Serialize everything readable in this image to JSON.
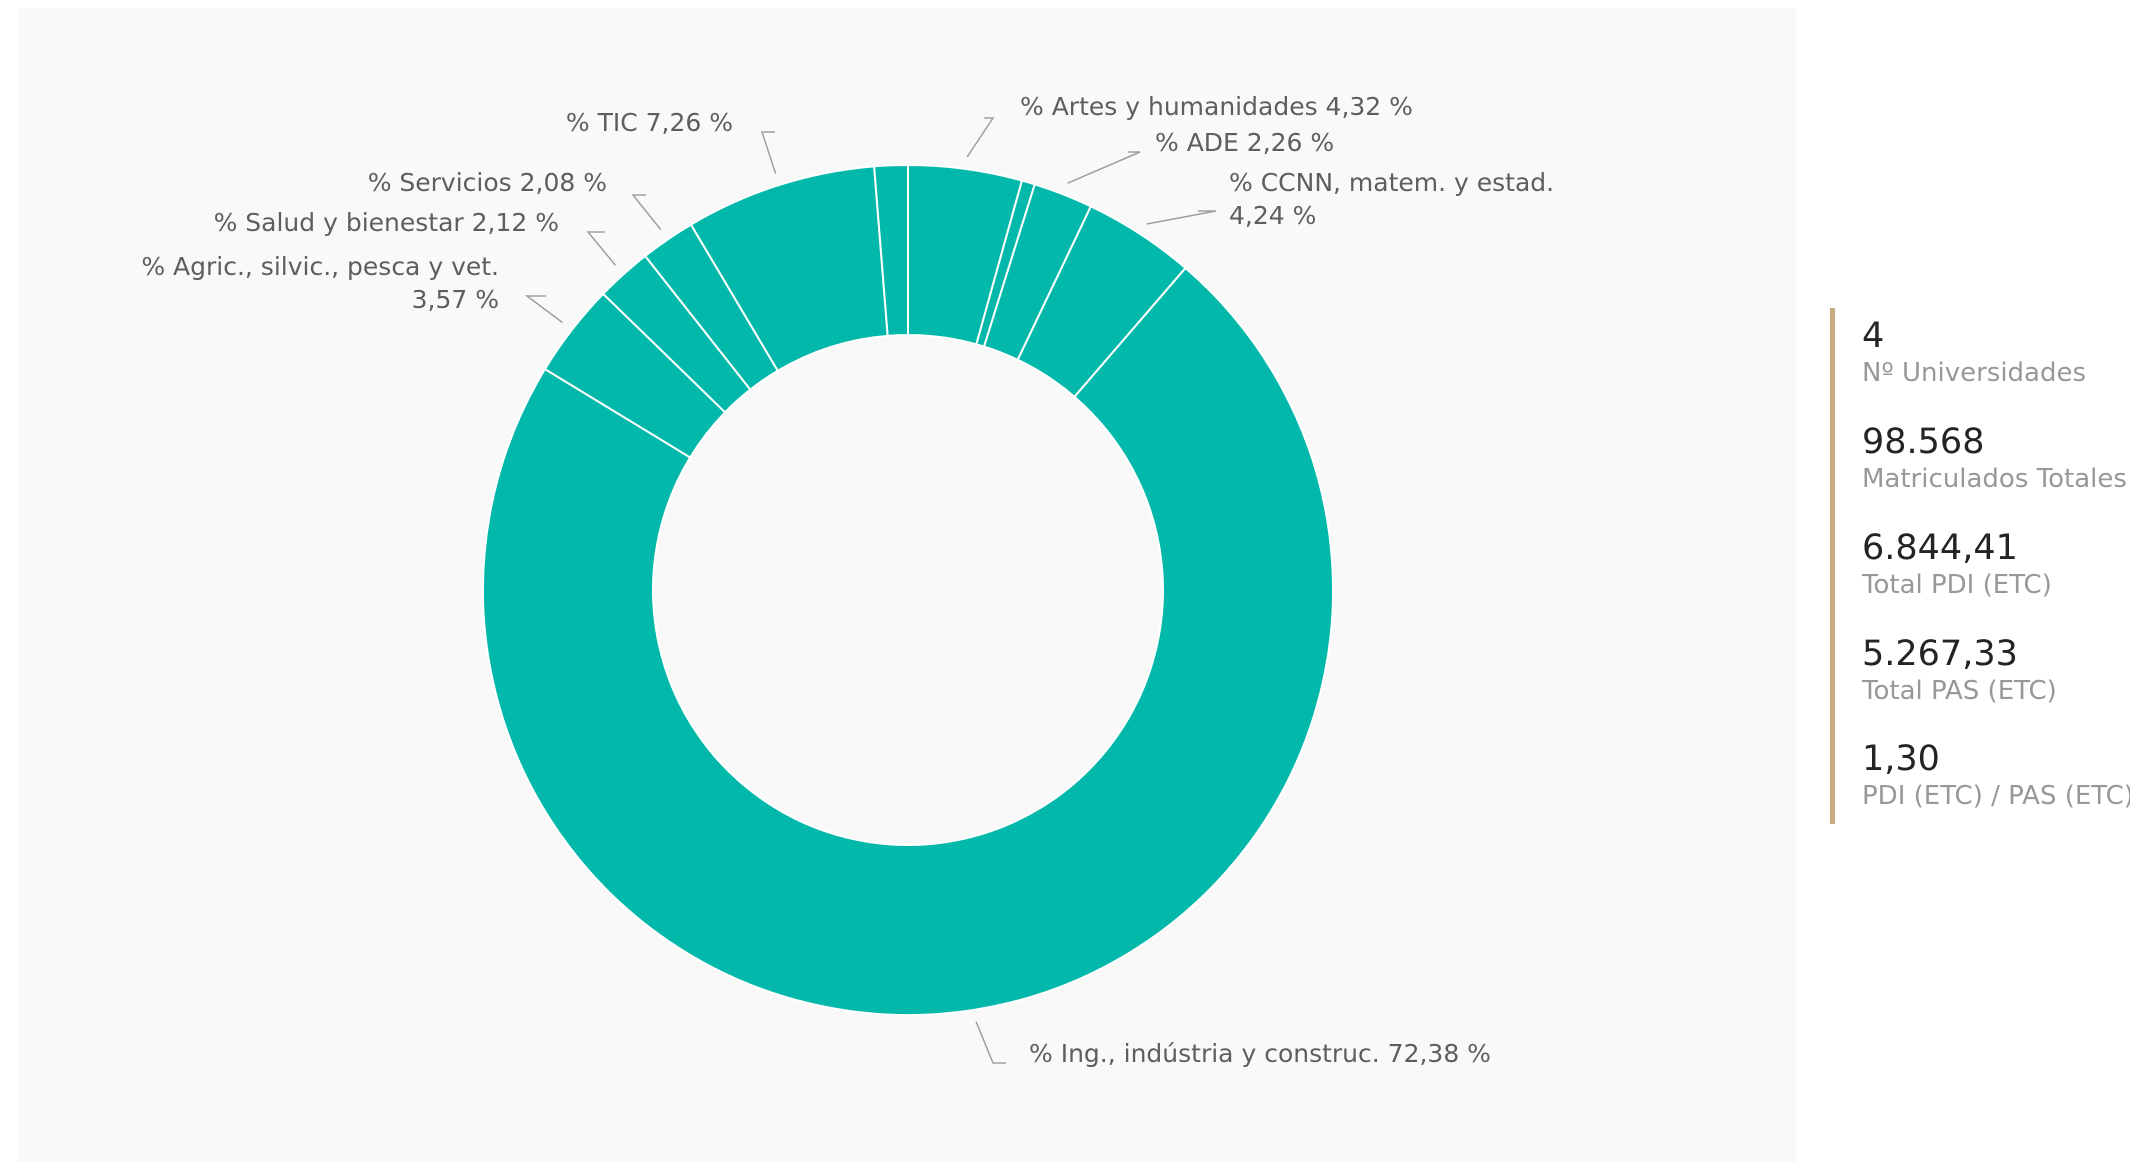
{
  "chart_data": {
    "type": "pie",
    "donut": true,
    "colors": {
      "slice": "#01b8aa",
      "separator": "#ffffff",
      "background": "#faf9fa"
    },
    "slices": [
      {
        "label": "% Artes y humanidades 4,32 %",
        "value": 4.32
      },
      {
        "label": "",
        "value": 0.5
      },
      {
        "label": "% ADE 2,26 %",
        "value": 2.26
      },
      {
        "label": "% CCNN, matem. y estad.\n4,24 %",
        "value": 4.24
      },
      {
        "label": "% Ing., indústria y construc. 72,38 %",
        "value": 72.38
      },
      {
        "label": "% Agric., silvic., pesca y vet.\n3,57 %",
        "value": 3.57
      },
      {
        "label": "% Salud y bienestar 2,12 %",
        "value": 2.12
      },
      {
        "label": "% Servicios 2,08 %",
        "value": 2.08
      },
      {
        "label": "% TIC 7,26 %",
        "value": 7.26
      },
      {
        "label": "",
        "value": 1.27
      }
    ]
  },
  "kpis": [
    {
      "value": "4",
      "label": "Nº Universidades"
    },
    {
      "value": "98.568",
      "label": "Matriculados Totales"
    },
    {
      "value": "6.844,41",
      "label": "Total PDI (ETC)"
    },
    {
      "value": "5.267,33",
      "label": "Total PAS (ETC)"
    },
    {
      "value": "1,30",
      "label": "PDI (ETC) / PAS (ETC)"
    }
  ]
}
